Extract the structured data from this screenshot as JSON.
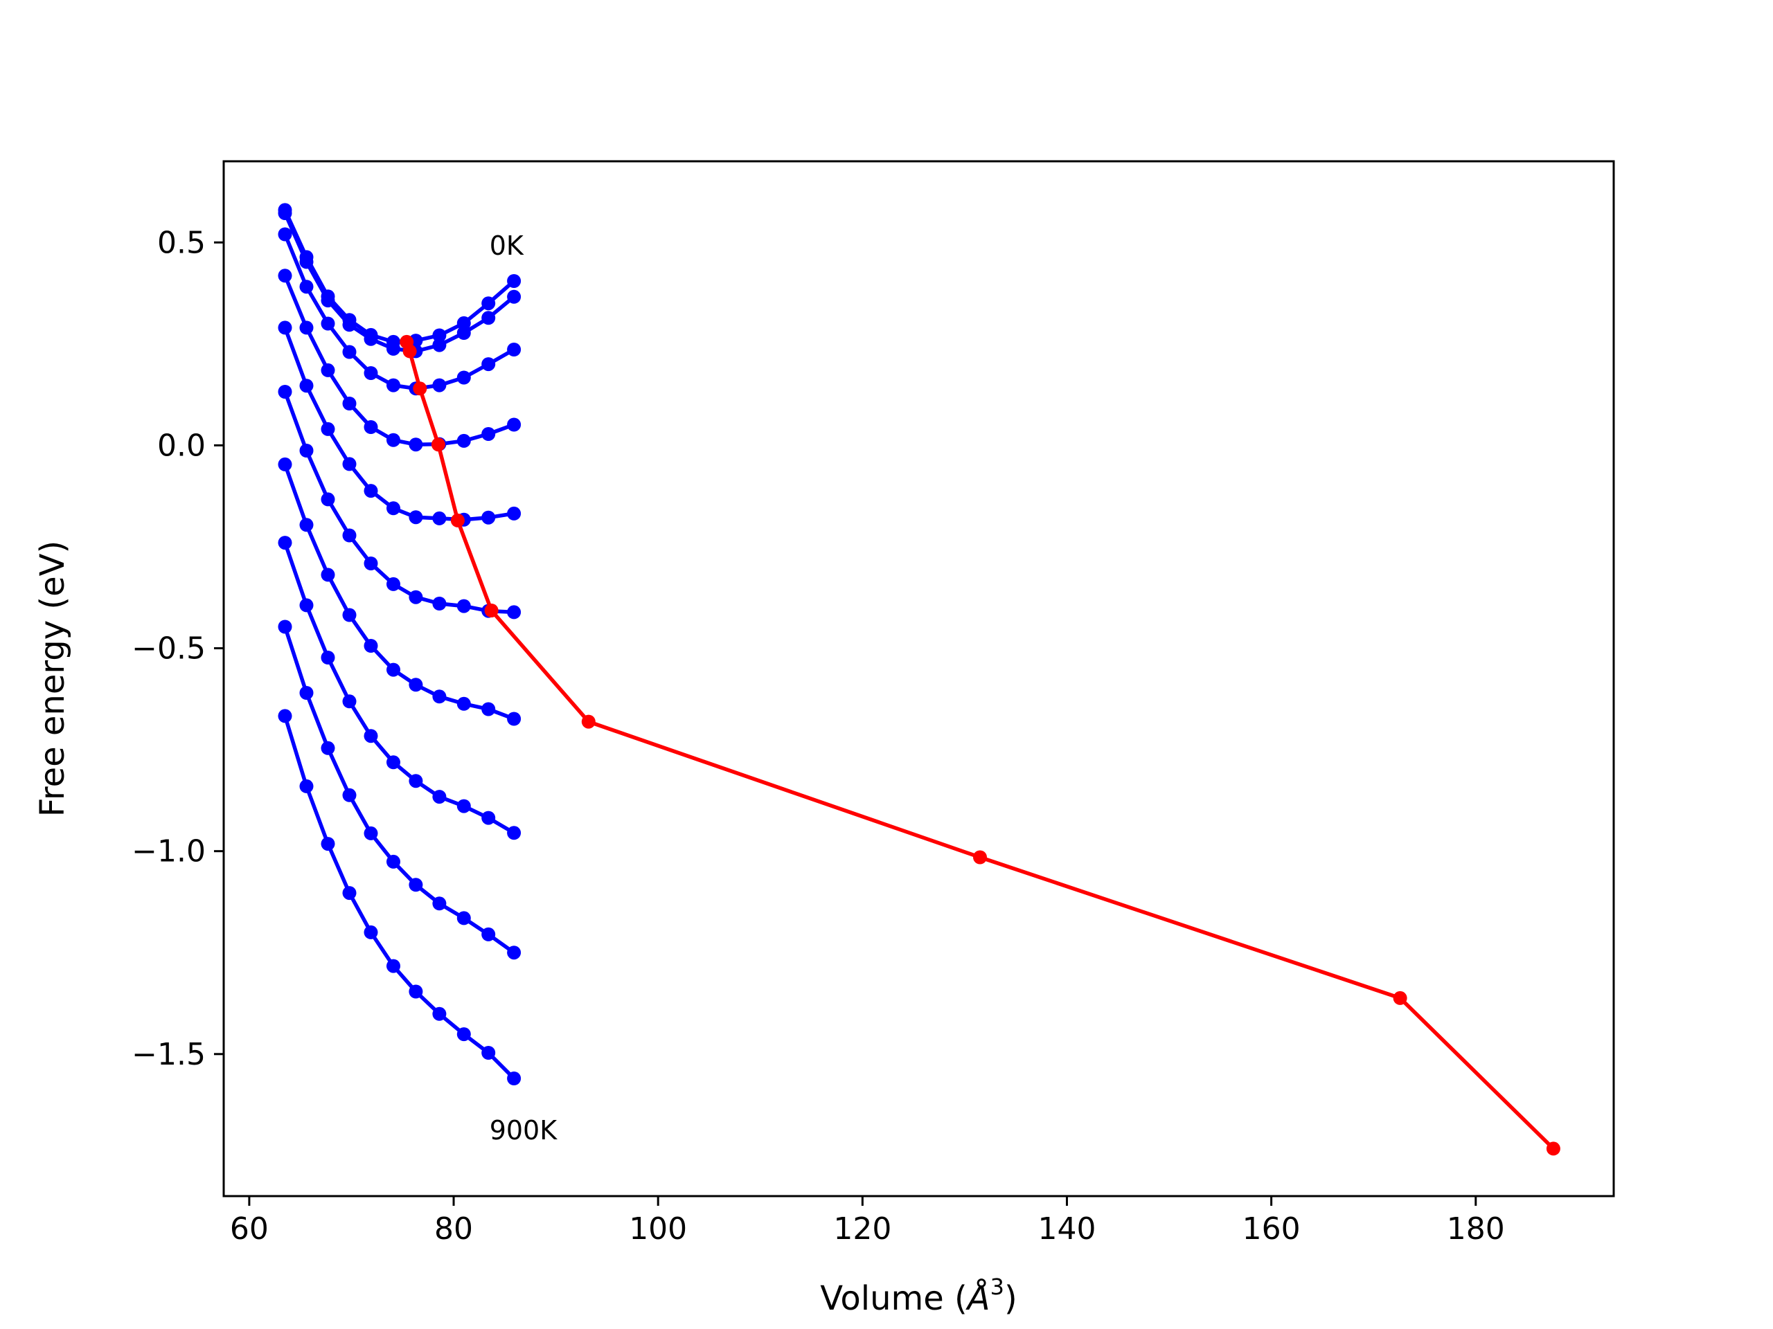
{
  "chart_data": {
    "type": "line",
    "xlabel": "Volume (",
    "xlabel_symbol": "Å",
    "xlabel_exp": "3",
    "xlabel_close": ")",
    "ylabel": "Free energy (eV)",
    "xlim": [
      57.5,
      193.5
    ],
    "ylim": [
      -1.85,
      0.7
    ],
    "xticks": [
      60,
      80,
      100,
      120,
      140,
      160,
      180
    ],
    "xtick_labels": [
      "60",
      "80",
      "100",
      "120",
      "140",
      "160",
      "180"
    ],
    "yticks": [
      0.5,
      0.0,
      -0.5,
      -1.0,
      -1.5
    ],
    "ytick_labels": [
      "0.5",
      "0.0",
      "−0.5",
      "−1.0",
      "−1.5"
    ],
    "grid": false,
    "annotations": [
      {
        "text": "0K",
        "x": 83.5,
        "y": 0.47
      },
      {
        "text": "900K",
        "x": 83.5,
        "y": -1.71
      }
    ],
    "x": [
      63.5,
      65.6,
      67.7,
      69.8,
      71.9,
      74.1,
      76.3,
      78.6,
      81.0,
      83.4,
      85.9
    ],
    "blue_color": "#0000ff",
    "red_color": "#ff0000",
    "series": [
      {
        "values": [
          0.58,
          0.464,
          0.367,
          0.309,
          0.272,
          0.255,
          0.258,
          0.271,
          0.301,
          0.35,
          0.405
        ]
      },
      {
        "values": [
          0.572,
          0.452,
          0.357,
          0.297,
          0.262,
          0.238,
          0.232,
          0.247,
          0.277,
          0.314,
          0.366
        ]
      },
      {
        "values": [
          0.52,
          0.391,
          0.3,
          0.23,
          0.178,
          0.148,
          0.14,
          0.148,
          0.167,
          0.2,
          0.236
        ]
      },
      {
        "values": [
          0.418,
          0.29,
          0.185,
          0.103,
          0.045,
          0.013,
          0.002,
          0.003,
          0.011,
          0.028,
          0.051
        ]
      },
      {
        "values": [
          0.29,
          0.147,
          0.04,
          -0.046,
          -0.112,
          -0.155,
          -0.177,
          -0.18,
          -0.183,
          -0.178,
          -0.168
        ]
      },
      {
        "values": [
          0.132,
          -0.013,
          -0.133,
          -0.222,
          -0.291,
          -0.342,
          -0.374,
          -0.39,
          -0.396,
          -0.408,
          -0.411
        ]
      },
      {
        "values": [
          -0.047,
          -0.196,
          -0.319,
          -0.418,
          -0.494,
          -0.553,
          -0.59,
          -0.619,
          -0.637,
          -0.65,
          -0.674
        ]
      },
      {
        "values": [
          -0.24,
          -0.394,
          -0.523,
          -0.631,
          -0.716,
          -0.781,
          -0.827,
          -0.866,
          -0.889,
          -0.918,
          -0.955
        ]
      },
      {
        "values": [
          -0.447,
          -0.61,
          -0.746,
          -0.862,
          -0.956,
          -1.026,
          -1.083,
          -1.129,
          -1.165,
          -1.205,
          -1.25
        ]
      },
      {
        "values": [
          -0.667,
          -0.84,
          -0.982,
          -1.103,
          -1.2,
          -1.283,
          -1.346,
          -1.401,
          -1.451,
          -1.497,
          -1.56
        ]
      }
    ],
    "red_series": {
      "x": [
        75.4,
        75.7,
        76.7,
        78.5,
        80.4,
        83.7,
        93.2,
        131.5,
        172.6,
        187.6
      ],
      "y": [
        0.255,
        0.232,
        0.14,
        0.002,
        -0.185,
        -0.407,
        -0.681,
        -1.015,
        -1.362,
        -1.733
      ]
    }
  }
}
